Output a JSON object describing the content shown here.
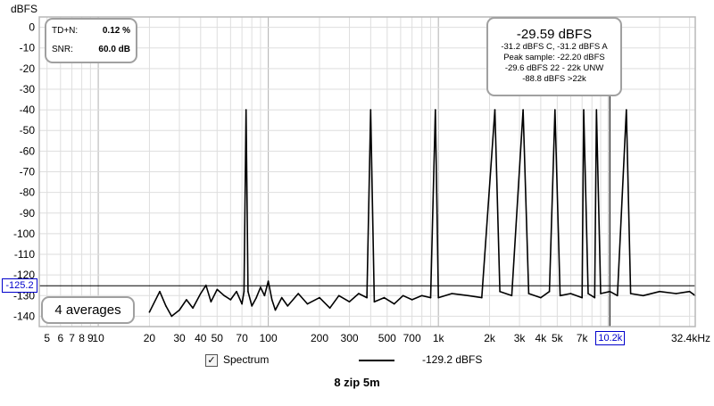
{
  "chart_data": {
    "type": "line",
    "ylabel": "dBFS",
    "x_scale": "log",
    "xlim": [
      4.5,
      32400
    ],
    "ylim": [
      -145,
      5
    ],
    "y_ticks": [
      0,
      -10,
      -20,
      -30,
      -40,
      -50,
      -60,
      -70,
      -80,
      -90,
      -100,
      -110,
      -120,
      -130,
      -140
    ],
    "x_ticks": [
      {
        "v": 5,
        "label": "5"
      },
      {
        "v": 6,
        "label": "6"
      },
      {
        "v": 7,
        "label": "7"
      },
      {
        "v": 8,
        "label": "8"
      },
      {
        "v": 9,
        "label": "9"
      },
      {
        "v": 10,
        "label": "10"
      },
      {
        "v": 20,
        "label": "20"
      },
      {
        "v": 30,
        "label": "30"
      },
      {
        "v": 40,
        "label": "40"
      },
      {
        "v": 50,
        "label": "50"
      },
      {
        "v": 70,
        "label": "70"
      },
      {
        "v": 100,
        "label": "100"
      },
      {
        "v": 200,
        "label": "200"
      },
      {
        "v": 300,
        "label": "300"
      },
      {
        "v": 500,
        "label": "500"
      },
      {
        "v": 700,
        "label": "700"
      },
      {
        "v": 1000,
        "label": "1k"
      },
      {
        "v": 2000,
        "label": "2k"
      },
      {
        "v": 3000,
        "label": "3k"
      },
      {
        "v": 4000,
        "label": "4k"
      },
      {
        "v": 5000,
        "label": "5k"
      },
      {
        "v": 7000,
        "label": "7k"
      },
      {
        "v": 32400,
        "label": "32.4kHz"
      }
    ],
    "series": [
      {
        "name": "Spectrum",
        "points": [
          [
            20,
            -138
          ],
          [
            23,
            -128
          ],
          [
            25,
            -135
          ],
          [
            27,
            -140
          ],
          [
            30,
            -137
          ],
          [
            33,
            -132
          ],
          [
            36,
            -136
          ],
          [
            40,
            -129
          ],
          [
            43,
            -125
          ],
          [
            46,
            -133
          ],
          [
            50,
            -127
          ],
          [
            55,
            -130
          ],
          [
            60,
            -132
          ],
          [
            65,
            -128
          ],
          [
            70,
            -134
          ],
          [
            72,
            -128
          ],
          [
            74,
            -40
          ],
          [
            76,
            -128
          ],
          [
            80,
            -135
          ],
          [
            85,
            -131
          ],
          [
            90,
            -126
          ],
          [
            95,
            -130
          ],
          [
            100,
            -123
          ],
          [
            105,
            -132
          ],
          [
            110,
            -137
          ],
          [
            120,
            -131
          ],
          [
            130,
            -135
          ],
          [
            150,
            -129
          ],
          [
            170,
            -134
          ],
          [
            200,
            -131
          ],
          [
            230,
            -136
          ],
          [
            260,
            -130
          ],
          [
            300,
            -133
          ],
          [
            340,
            -129
          ],
          [
            380,
            -131
          ],
          [
            400,
            -40
          ],
          [
            420,
            -133
          ],
          [
            480,
            -131
          ],
          [
            550,
            -134
          ],
          [
            620,
            -130
          ],
          [
            700,
            -132
          ],
          [
            800,
            -130
          ],
          [
            900,
            -131
          ],
          [
            960,
            -40
          ],
          [
            1000,
            -131
          ],
          [
            1200,
            -129
          ],
          [
            1500,
            -130
          ],
          [
            1800,
            -131
          ],
          [
            2150,
            -40
          ],
          [
            2300,
            -128
          ],
          [
            2700,
            -130
          ],
          [
            3150,
            -40
          ],
          [
            3400,
            -129
          ],
          [
            4000,
            -131
          ],
          [
            4500,
            -128
          ],
          [
            4850,
            -40
          ],
          [
            5200,
            -130
          ],
          [
            6000,
            -129
          ],
          [
            7000,
            -131
          ],
          [
            7150,
            -40
          ],
          [
            7600,
            -129
          ],
          [
            8300,
            -131
          ],
          [
            8500,
            -40
          ],
          [
            9000,
            -129
          ],
          [
            10200,
            -128
          ],
          [
            11300,
            -130
          ],
          [
            12750,
            -40
          ],
          [
            13500,
            -129
          ],
          [
            16000,
            -130
          ],
          [
            20000,
            -128
          ],
          [
            25000,
            -129
          ],
          [
            30000,
            -128
          ],
          [
            32400,
            -130
          ]
        ]
      }
    ],
    "cursor_x_label": "10.2k",
    "cursor_y_label": "-125.2",
    "cursor_y": -125.2,
    "cursor_x": 10200
  },
  "metrics": {
    "thdn_label": "TD+N:",
    "thdn_value": "0.12 %",
    "snr_label": "SNR:",
    "snr_value": "60.0 dB"
  },
  "level": {
    "main": "-29.59 dBFS",
    "lines": [
      "-31.2 dBFS C, -31.2 dBFS A",
      "Peak sample: -22.20 dBFS",
      "-29.6 dBFS 22 - 22k UNW",
      "-88.8 dBFS >22k"
    ]
  },
  "averages_label": "4 averages",
  "legend": {
    "checked": "✓",
    "label": "Spectrum",
    "value": "-129.2 dBFS"
  },
  "footer_title": "8 zip 5m"
}
